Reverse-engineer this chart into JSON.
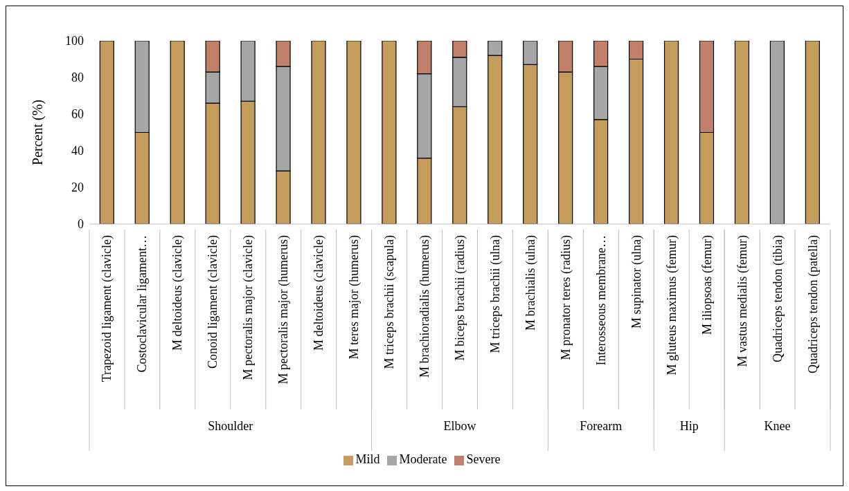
{
  "chart_data": {
    "type": "bar",
    "stacked": true,
    "ylabel": "Percent (%)",
    "ylim": [
      0,
      100
    ],
    "yticks": [
      0,
      20,
      40,
      60,
      80,
      100
    ],
    "legend": "bottom",
    "grid": false,
    "categories": [
      "Trapezoid ligament (clavicle)",
      "Costoclavicular ligament…",
      "M deltoideus (clavicle)",
      "Conoid ligament (clavicle)",
      "M pectoralis major (clavicle)",
      "M pectoralis major (humerus)",
      "M deltoideus (clavicle)",
      "M teres major (humerus)",
      "M triceps brachii (scapula)",
      "M brachioradialis (humerus)",
      "M biceps brachii (radius)",
      "M triceps brachii (ulna)",
      "M brachialis (ulna)",
      "M pronator teres (radius)",
      "Interosseous membrane…",
      "M supinator (ulna)",
      "M gluteus maximus (femur)",
      "M iliopsoas (femur)",
      "M vastus medialis (femur)",
      "Quadriceps tendon (tibia)",
      "Quadriceps tendon (patella)"
    ],
    "series": [
      {
        "name": "Mild",
        "color": "#c49c5c",
        "values": [
          100,
          50,
          100,
          66,
          67,
          29,
          100,
          100,
          100,
          36,
          64,
          92,
          87,
          83,
          57,
          90,
          100,
          50,
          100,
          0,
          100
        ]
      },
      {
        "name": "Moderate",
        "color": "#a6a6a6",
        "values": [
          0,
          50,
          0,
          17,
          33,
          57,
          0,
          0,
          0,
          46,
          27,
          8,
          13,
          0,
          29,
          0,
          0,
          0,
          0,
          100,
          0
        ]
      },
      {
        "name": "Severe",
        "color": "#c0806a",
        "values": [
          0,
          0,
          0,
          17,
          0,
          14,
          0,
          0,
          0,
          18,
          9,
          0,
          0,
          17,
          14,
          10,
          0,
          50,
          0,
          0,
          0
        ]
      }
    ],
    "annotations": [
      "Shoulder",
      "Elbow",
      "Forearm",
      "Hip",
      "Knee"
    ]
  }
}
